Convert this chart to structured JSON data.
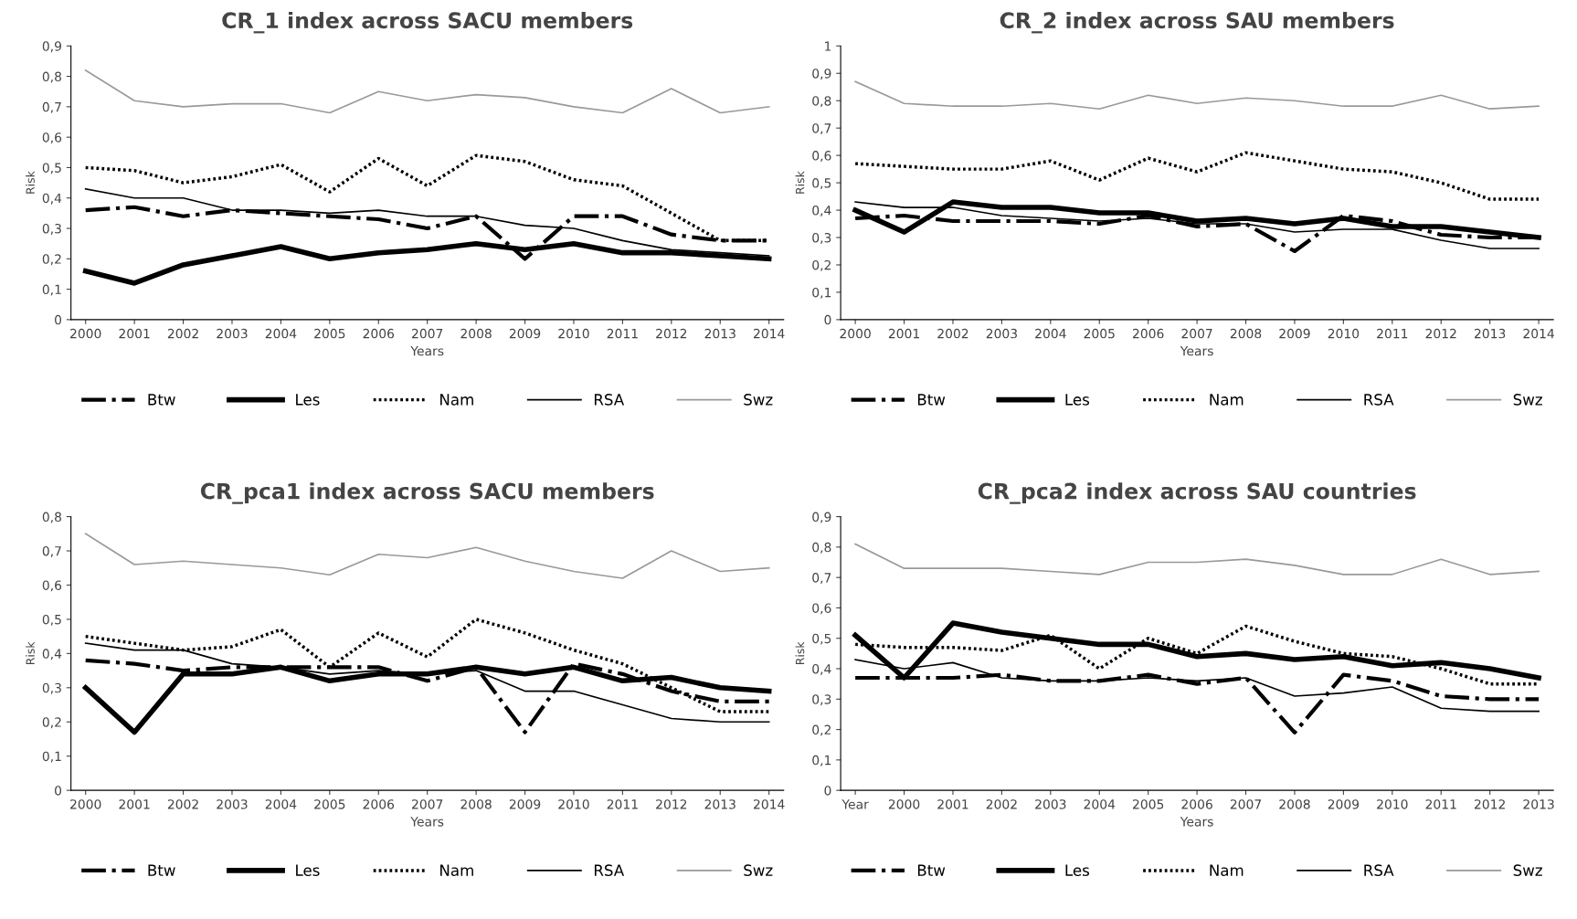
{
  "chart_data": [
    {
      "type": "line",
      "title": "CR_1 index across SACU members",
      "xlabel": "Years",
      "ylabel": "Risk",
      "legend": "bottom",
      "grid": false,
      "categories": [
        "2000",
        "2001",
        "2002",
        "2003",
        "2004",
        "2005",
        "2006",
        "2007",
        "2008",
        "2009",
        "2010",
        "2011",
        "2012",
        "2013",
        "2014"
      ],
      "ylim": [
        0,
        0.9
      ],
      "yticks": [
        {
          "value": 0,
          "label": "0"
        },
        {
          "value": 0.1,
          "label": "0,1"
        },
        {
          "value": 0.2,
          "label": "0,2"
        },
        {
          "value": 0.3,
          "label": "0,3"
        },
        {
          "value": 0.4,
          "label": "0,4"
        },
        {
          "value": 0.5,
          "label": "0,5"
        },
        {
          "value": 0.6,
          "label": "0,6"
        },
        {
          "value": 0.7,
          "label": "0,7"
        },
        {
          "value": 0.8,
          "label": "0,8"
        },
        {
          "value": 0.9,
          "label": "0,9"
        }
      ],
      "series": [
        {
          "name": "Btw",
          "color": "#000000",
          "line_style": "dashdot",
          "values": [
            0.36,
            0.37,
            0.34,
            0.36,
            0.35,
            0.34,
            0.33,
            0.3,
            0.34,
            0.2,
            0.34,
            0.34,
            0.28,
            0.26,
            0.26
          ]
        },
        {
          "name": "Les",
          "color": "#000000",
          "line_style": "solid",
          "values": [
            0.16,
            0.12,
            0.18,
            0.21,
            0.24,
            0.2,
            0.22,
            0.23,
            0.25,
            0.23,
            0.25,
            0.22,
            0.22,
            0.21,
            0.2
          ]
        },
        {
          "name": "Nam",
          "color": "#000000",
          "line_style": "dotted",
          "values": [
            0.5,
            0.49,
            0.45,
            0.47,
            0.51,
            0.42,
            0.53,
            0.44,
            0.54,
            0.52,
            0.46,
            0.44,
            0.35,
            0.26,
            0.26
          ]
        },
        {
          "name": "RSA",
          "color": "#000000",
          "line_style": "solid",
          "values": [
            0.43,
            0.4,
            0.4,
            0.36,
            0.36,
            0.35,
            0.36,
            0.34,
            0.34,
            0.31,
            0.3,
            0.26,
            0.23,
            0.22,
            0.21
          ]
        },
        {
          "name": "Swz",
          "color": "#999999",
          "line_style": "solid",
          "values": [
            0.82,
            0.72,
            0.7,
            0.71,
            0.71,
            0.68,
            0.75,
            0.72,
            0.74,
            0.73,
            0.7,
            0.68,
            0.76,
            0.68,
            0.7
          ]
        }
      ]
    },
    {
      "type": "line",
      "title": "CR_2 index across SAU members",
      "xlabel": "Years",
      "ylabel": "Risk",
      "legend": "bottom",
      "grid": false,
      "categories": [
        "2000",
        "2001",
        "2002",
        "2003",
        "2004",
        "2005",
        "2006",
        "2007",
        "2008",
        "2009",
        "2010",
        "2011",
        "2012",
        "2013",
        "2014"
      ],
      "ylim": [
        0,
        1
      ],
      "yticks": [
        {
          "value": 0,
          "label": "0"
        },
        {
          "value": 0.1,
          "label": "0,1"
        },
        {
          "value": 0.2,
          "label": "0,2"
        },
        {
          "value": 0.3,
          "label": "0,3"
        },
        {
          "value": 0.4,
          "label": "0,4"
        },
        {
          "value": 0.5,
          "label": "0,5"
        },
        {
          "value": 0.6,
          "label": "0,6"
        },
        {
          "value": 0.7,
          "label": "0,7"
        },
        {
          "value": 0.8,
          "label": "0,8"
        },
        {
          "value": 0.9,
          "label": "0,9"
        },
        {
          "value": 1,
          "label": "1"
        }
      ],
      "series": [
        {
          "name": "Btw",
          "color": "#000000",
          "line_style": "dashdot",
          "values": [
            0.37,
            0.38,
            0.36,
            0.36,
            0.36,
            0.35,
            0.38,
            0.34,
            0.35,
            0.25,
            0.38,
            0.36,
            0.31,
            0.3,
            0.3
          ]
        },
        {
          "name": "Les",
          "color": "#000000",
          "line_style": "solid",
          "values": [
            0.4,
            0.32,
            0.43,
            0.41,
            0.41,
            0.39,
            0.39,
            0.36,
            0.37,
            0.35,
            0.37,
            0.34,
            0.34,
            0.32,
            0.3
          ]
        },
        {
          "name": "Nam",
          "color": "#000000",
          "line_style": "dotted",
          "values": [
            0.57,
            0.56,
            0.55,
            0.55,
            0.58,
            0.51,
            0.59,
            0.54,
            0.61,
            0.58,
            0.55,
            0.54,
            0.5,
            0.44,
            0.44
          ]
        },
        {
          "name": "RSA",
          "color": "#000000",
          "line_style": "solid",
          "values": [
            0.43,
            0.41,
            0.41,
            0.38,
            0.37,
            0.36,
            0.37,
            0.35,
            0.35,
            0.32,
            0.33,
            0.33,
            0.29,
            0.26,
            0.26
          ]
        },
        {
          "name": "Swz",
          "color": "#999999",
          "line_style": "solid",
          "values": [
            0.87,
            0.79,
            0.78,
            0.78,
            0.79,
            0.77,
            0.82,
            0.79,
            0.81,
            0.8,
            0.78,
            0.78,
            0.82,
            0.77,
            0.78
          ]
        }
      ]
    },
    {
      "type": "line",
      "title": "CR_pca1 index across SACU members",
      "xlabel": "Years",
      "ylabel": "Risk",
      "legend": "bottom",
      "grid": false,
      "categories": [
        "2000",
        "2001",
        "2002",
        "2003",
        "2004",
        "2005",
        "2006",
        "2007",
        "2008",
        "2009",
        "2010",
        "2011",
        "2012",
        "2013",
        "2014"
      ],
      "ylim": [
        0,
        0.8
      ],
      "yticks": [
        {
          "value": 0,
          "label": "0"
        },
        {
          "value": 0.1,
          "label": "0,1"
        },
        {
          "value": 0.2,
          "label": "0,2"
        },
        {
          "value": 0.3,
          "label": "0,3"
        },
        {
          "value": 0.4,
          "label": "0,4"
        },
        {
          "value": 0.5,
          "label": "0,5"
        },
        {
          "value": 0.6,
          "label": "0,6"
        },
        {
          "value": 0.7,
          "label": "0,7"
        },
        {
          "value": 0.8,
          "label": "0,8"
        }
      ],
      "series": [
        {
          "name": "Btw",
          "color": "#000000",
          "line_style": "dashdot",
          "values": [
            0.38,
            0.37,
            0.35,
            0.36,
            0.36,
            0.36,
            0.36,
            0.32,
            0.36,
            0.17,
            0.37,
            0.34,
            0.29,
            0.26,
            0.26
          ]
        },
        {
          "name": "Les",
          "color": "#000000",
          "line_style": "solid",
          "values": [
            0.3,
            0.17,
            0.34,
            0.34,
            0.36,
            0.32,
            0.34,
            0.34,
            0.36,
            0.34,
            0.36,
            0.32,
            0.33,
            0.3,
            0.29
          ]
        },
        {
          "name": "Nam",
          "color": "#000000",
          "line_style": "dotted",
          "values": [
            0.45,
            0.43,
            0.41,
            0.42,
            0.47,
            0.36,
            0.46,
            0.39,
            0.5,
            0.46,
            0.41,
            0.37,
            0.3,
            0.23,
            0.23
          ]
        },
        {
          "name": "RSA",
          "color": "#000000",
          "line_style": "solid",
          "values": [
            0.43,
            0.41,
            0.41,
            0.37,
            0.36,
            0.34,
            0.35,
            0.34,
            0.35,
            0.29,
            0.29,
            0.25,
            0.21,
            0.2,
            0.2
          ]
        },
        {
          "name": "Swz",
          "color": "#999999",
          "line_style": "solid",
          "values": [
            0.75,
            0.66,
            0.67,
            0.66,
            0.65,
            0.63,
            0.69,
            0.68,
            0.71,
            0.67,
            0.64,
            0.62,
            0.7,
            0.64,
            0.65
          ]
        }
      ]
    },
    {
      "type": "line",
      "title": "CR_pca2 index across SAU countries",
      "xlabel": "Years",
      "ylabel": "Risk",
      "legend": "bottom",
      "grid": false,
      "categories": [
        "Year",
        "2000",
        "2001",
        "2002",
        "2003",
        "2004",
        "2005",
        "2006",
        "2007",
        "2008",
        "2009",
        "2010",
        "2011",
        "2012",
        "2013"
      ],
      "ylim": [
        0,
        0.9
      ],
      "yticks": [
        {
          "value": 0,
          "label": "0"
        },
        {
          "value": 0.1,
          "label": "0,1"
        },
        {
          "value": 0.2,
          "label": "0,2"
        },
        {
          "value": 0.3,
          "label": "0,3"
        },
        {
          "value": 0.4,
          "label": "0,4"
        },
        {
          "value": 0.5,
          "label": "0,5"
        },
        {
          "value": 0.6,
          "label": "0,6"
        },
        {
          "value": 0.7,
          "label": "0,7"
        },
        {
          "value": 0.8,
          "label": "0,8"
        },
        {
          "value": 0.9,
          "label": "0,9"
        }
      ],
      "series": [
        {
          "name": "Btw",
          "color": "#000000",
          "line_style": "dashdot",
          "values": [
            0.37,
            0.37,
            0.37,
            0.38,
            0.36,
            0.36,
            0.38,
            0.35,
            0.37,
            0.19,
            0.38,
            0.36,
            0.31,
            0.3,
            0.3
          ]
        },
        {
          "name": "Les",
          "color": "#000000",
          "line_style": "solid",
          "values": [
            0.51,
            0.37,
            0.55,
            0.52,
            0.5,
            0.48,
            0.48,
            0.44,
            0.45,
            0.43,
            0.44,
            0.41,
            0.42,
            0.4,
            0.37
          ]
        },
        {
          "name": "Nam",
          "color": "#000000",
          "line_style": "dotted",
          "values": [
            0.48,
            0.47,
            0.47,
            0.46,
            0.51,
            0.4,
            0.5,
            0.45,
            0.54,
            0.49,
            0.45,
            0.44,
            0.4,
            0.35,
            0.35
          ]
        },
        {
          "name": "RSA",
          "color": "#000000",
          "line_style": "solid",
          "values": [
            0.43,
            0.4,
            0.42,
            0.37,
            0.36,
            0.36,
            0.37,
            0.36,
            0.37,
            0.31,
            0.32,
            0.34,
            0.27,
            0.26,
            0.26
          ]
        },
        {
          "name": "Swz",
          "color": "#999999",
          "line_style": "solid",
          "values": [
            0.81,
            0.73,
            0.73,
            0.73,
            0.72,
            0.71,
            0.75,
            0.75,
            0.76,
            0.74,
            0.71,
            0.71,
            0.76,
            0.71,
            0.72
          ]
        }
      ]
    }
  ]
}
